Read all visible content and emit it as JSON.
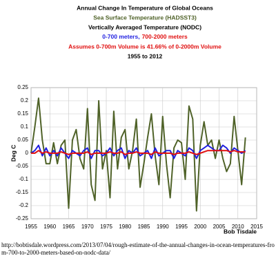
{
  "chart_data": {
    "type": "line",
    "title": "Annual Change In Temperature of Global Oceans",
    "subtitle": "Sea Surface Temperature (HADSST3)",
    "subtitle2": "Vertically Averaged Temperature (NODC)",
    "subtitle3_parts": [
      "0-700 meters,",
      "700-2000 meters"
    ],
    "subtitle4": "Assumes 0-700m Volume is 41.66% of 0-2000m Volume",
    "subtitle5": "1955 to 2012",
    "ylabel": "Deg C",
    "credit": "Bob Tisdale",
    "caption": "http://bobtisdale.wordpress.com/2013/07/04/rough-estimate-of-the-annual-changes-in-ocean-temperatures-from-700-to-2000-meters-based-on-nodc-data/",
    "x": [
      1955,
      1956,
      1957,
      1958,
      1959,
      1960,
      1961,
      1962,
      1963,
      1964,
      1965,
      1966,
      1967,
      1968,
      1969,
      1970,
      1971,
      1972,
      1973,
      1974,
      1975,
      1976,
      1977,
      1978,
      1979,
      1980,
      1981,
      1982,
      1983,
      1984,
      1985,
      1986,
      1987,
      1988,
      1989,
      1990,
      1991,
      1992,
      1993,
      1994,
      1995,
      1996,
      1997,
      1998,
      1999,
      2000,
      2001,
      2002,
      2003,
      2004,
      2005,
      2006,
      2007,
      2008,
      2009,
      2010,
      2011,
      2012
    ],
    "series": [
      {
        "color": "#4f6228",
        "values": [
          0,
          0.1,
          0.21,
          0.05,
          -0.04,
          -0.04,
          0.04,
          -0.04,
          0.03,
          0.05,
          -0.21,
          0.05,
          0.09,
          -0.02,
          -0.06,
          0.17,
          -0.12,
          -0.18,
          0.2,
          -0.06,
          0.01,
          -0.17,
          0.16,
          -0.06,
          0.06,
          0.09,
          -0.06,
          0.01,
          0.13,
          -0.13,
          -0.04,
          0.06,
          0.15,
          -0.01,
          -0.12,
          0.14,
          -0.04,
          -0.17,
          0.02,
          0.05,
          0.04,
          -0.1,
          0.18,
          0.13,
          -0.22,
          0.03,
          0.12,
          0.03,
          0.05,
          -0.02,
          0.05,
          -0.02,
          -0.07,
          -0.04,
          0.14,
          0.01,
          -0.12,
          0.06
        ]
      },
      {
        "color": "#1f1fe0",
        "values": [
          0,
          0.01,
          0.03,
          -0.01,
          0.02,
          -0.01,
          0.01,
          -0.01,
          0.02,
          0,
          -0.02,
          0.01,
          0,
          -0.01,
          0.01,
          0.02,
          -0.02,
          0.01,
          0.01,
          -0.01,
          0,
          0.02,
          -0.01,
          0.01,
          0.02,
          -0.02,
          0.01,
          0,
          0.02,
          -0.01,
          0,
          0.01,
          -0.02,
          0.02,
          -0.01,
          0,
          0.01,
          0.01,
          -0.02,
          0.01,
          0,
          -0.01,
          0.02,
          0.01,
          -0.02,
          0.01,
          0.02,
          0.03,
          0.02,
          0.01,
          0.01,
          0.03,
          0.02,
          0,
          0.02,
          0.01,
          0,
          0.01
        ]
      },
      {
        "color": "#e01010",
        "values": [
          0,
          0,
          0.01,
          0,
          0.005,
          0,
          0,
          0,
          0.005,
          0,
          -0.005,
          0,
          0,
          0,
          0,
          0.005,
          -0.005,
          0,
          0,
          0,
          0,
          0.005,
          0,
          0,
          0.005,
          -0.005,
          0,
          0,
          0.005,
          0,
          0,
          0,
          -0.005,
          0.005,
          0,
          0,
          0,
          0,
          -0.005,
          0,
          0,
          0,
          0.005,
          0,
          -0.005,
          0,
          0.005,
          0.01,
          0.01,
          0.01,
          0.01,
          0.01,
          0.01,
          0.005,
          0.01,
          0.005,
          0.005,
          0.005
        ]
      }
    ],
    "xlim": [
      1955,
      2015
    ],
    "xticks": [
      1955,
      1960,
      1965,
      1970,
      1975,
      1980,
      1985,
      1990,
      1995,
      2000,
      2005,
      2010,
      2015
    ],
    "ylim": [
      -0.25,
      0.25
    ],
    "yticks": [
      -0.25,
      -0.2,
      -0.15,
      -0.1,
      -0.05,
      0,
      0.05,
      0.1,
      0.15,
      0.2,
      0.25
    ],
    "grid": true
  }
}
